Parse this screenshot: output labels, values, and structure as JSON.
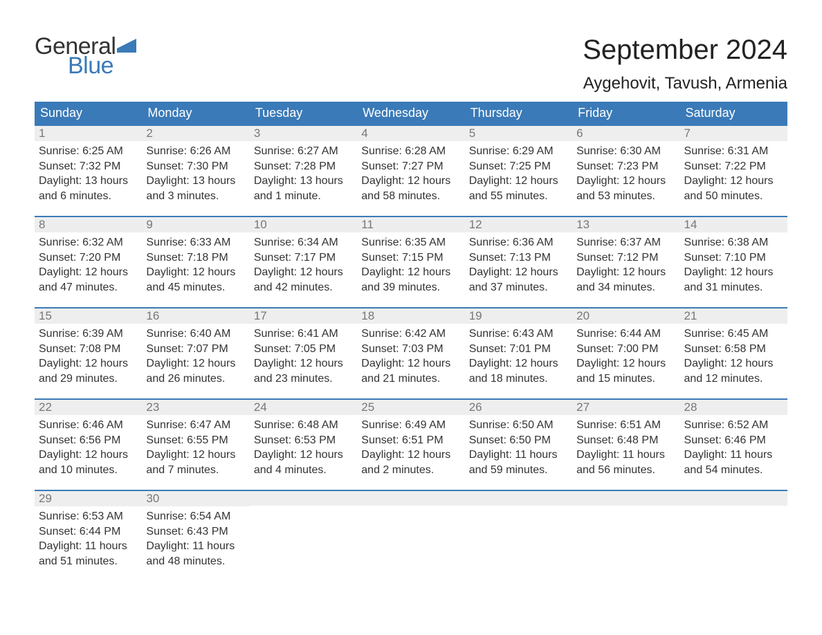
{
  "brand": {
    "line1": "General",
    "line2": "Blue",
    "flag_color": "#3a7ab8"
  },
  "title": "September 2024",
  "location": "Aygehovit, Tavush, Armenia",
  "colors": {
    "header_bg": "#3a7ab8",
    "header_text": "#ffffff",
    "daynum_bg": "#eeeeee",
    "daynum_text": "#777777",
    "row_border": "#3a7ab8",
    "body_text": "#333333"
  },
  "weekdays": [
    "Sunday",
    "Monday",
    "Tuesday",
    "Wednesday",
    "Thursday",
    "Friday",
    "Saturday"
  ],
  "days": [
    {
      "n": "1",
      "sunrise": "6:25 AM",
      "sunset": "7:32 PM",
      "daylight": "13 hours and 6 minutes."
    },
    {
      "n": "2",
      "sunrise": "6:26 AM",
      "sunset": "7:30 PM",
      "daylight": "13 hours and 3 minutes."
    },
    {
      "n": "3",
      "sunrise": "6:27 AM",
      "sunset": "7:28 PM",
      "daylight": "13 hours and 1 minute."
    },
    {
      "n": "4",
      "sunrise": "6:28 AM",
      "sunset": "7:27 PM",
      "daylight": "12 hours and 58 minutes."
    },
    {
      "n": "5",
      "sunrise": "6:29 AM",
      "sunset": "7:25 PM",
      "daylight": "12 hours and 55 minutes."
    },
    {
      "n": "6",
      "sunrise": "6:30 AM",
      "sunset": "7:23 PM",
      "daylight": "12 hours and 53 minutes."
    },
    {
      "n": "7",
      "sunrise": "6:31 AM",
      "sunset": "7:22 PM",
      "daylight": "12 hours and 50 minutes."
    },
    {
      "n": "8",
      "sunrise": "6:32 AM",
      "sunset": "7:20 PM",
      "daylight": "12 hours and 47 minutes."
    },
    {
      "n": "9",
      "sunrise": "6:33 AM",
      "sunset": "7:18 PM",
      "daylight": "12 hours and 45 minutes."
    },
    {
      "n": "10",
      "sunrise": "6:34 AM",
      "sunset": "7:17 PM",
      "daylight": "12 hours and 42 minutes."
    },
    {
      "n": "11",
      "sunrise": "6:35 AM",
      "sunset": "7:15 PM",
      "daylight": "12 hours and 39 minutes."
    },
    {
      "n": "12",
      "sunrise": "6:36 AM",
      "sunset": "7:13 PM",
      "daylight": "12 hours and 37 minutes."
    },
    {
      "n": "13",
      "sunrise": "6:37 AM",
      "sunset": "7:12 PM",
      "daylight": "12 hours and 34 minutes."
    },
    {
      "n": "14",
      "sunrise": "6:38 AM",
      "sunset": "7:10 PM",
      "daylight": "12 hours and 31 minutes."
    },
    {
      "n": "15",
      "sunrise": "6:39 AM",
      "sunset": "7:08 PM",
      "daylight": "12 hours and 29 minutes."
    },
    {
      "n": "16",
      "sunrise": "6:40 AM",
      "sunset": "7:07 PM",
      "daylight": "12 hours and 26 minutes."
    },
    {
      "n": "17",
      "sunrise": "6:41 AM",
      "sunset": "7:05 PM",
      "daylight": "12 hours and 23 minutes."
    },
    {
      "n": "18",
      "sunrise": "6:42 AM",
      "sunset": "7:03 PM",
      "daylight": "12 hours and 21 minutes."
    },
    {
      "n": "19",
      "sunrise": "6:43 AM",
      "sunset": "7:01 PM",
      "daylight": "12 hours and 18 minutes."
    },
    {
      "n": "20",
      "sunrise": "6:44 AM",
      "sunset": "7:00 PM",
      "daylight": "12 hours and 15 minutes."
    },
    {
      "n": "21",
      "sunrise": "6:45 AM",
      "sunset": "6:58 PM",
      "daylight": "12 hours and 12 minutes."
    },
    {
      "n": "22",
      "sunrise": "6:46 AM",
      "sunset": "6:56 PM",
      "daylight": "12 hours and 10 minutes."
    },
    {
      "n": "23",
      "sunrise": "6:47 AM",
      "sunset": "6:55 PM",
      "daylight": "12 hours and 7 minutes."
    },
    {
      "n": "24",
      "sunrise": "6:48 AM",
      "sunset": "6:53 PM",
      "daylight": "12 hours and 4 minutes."
    },
    {
      "n": "25",
      "sunrise": "6:49 AM",
      "sunset": "6:51 PM",
      "daylight": "12 hours and 2 minutes."
    },
    {
      "n": "26",
      "sunrise": "6:50 AM",
      "sunset": "6:50 PM",
      "daylight": "11 hours and 59 minutes."
    },
    {
      "n": "27",
      "sunrise": "6:51 AM",
      "sunset": "6:48 PM",
      "daylight": "11 hours and 56 minutes."
    },
    {
      "n": "28",
      "sunrise": "6:52 AM",
      "sunset": "6:46 PM",
      "daylight": "11 hours and 54 minutes."
    },
    {
      "n": "29",
      "sunrise": "6:53 AM",
      "sunset": "6:44 PM",
      "daylight": "11 hours and 51 minutes."
    },
    {
      "n": "30",
      "sunrise": "6:54 AM",
      "sunset": "6:43 PM",
      "daylight": "11 hours and 48 minutes."
    }
  ],
  "labels": {
    "sunrise": "Sunrise:",
    "sunset": "Sunset:",
    "daylight": "Daylight:"
  }
}
